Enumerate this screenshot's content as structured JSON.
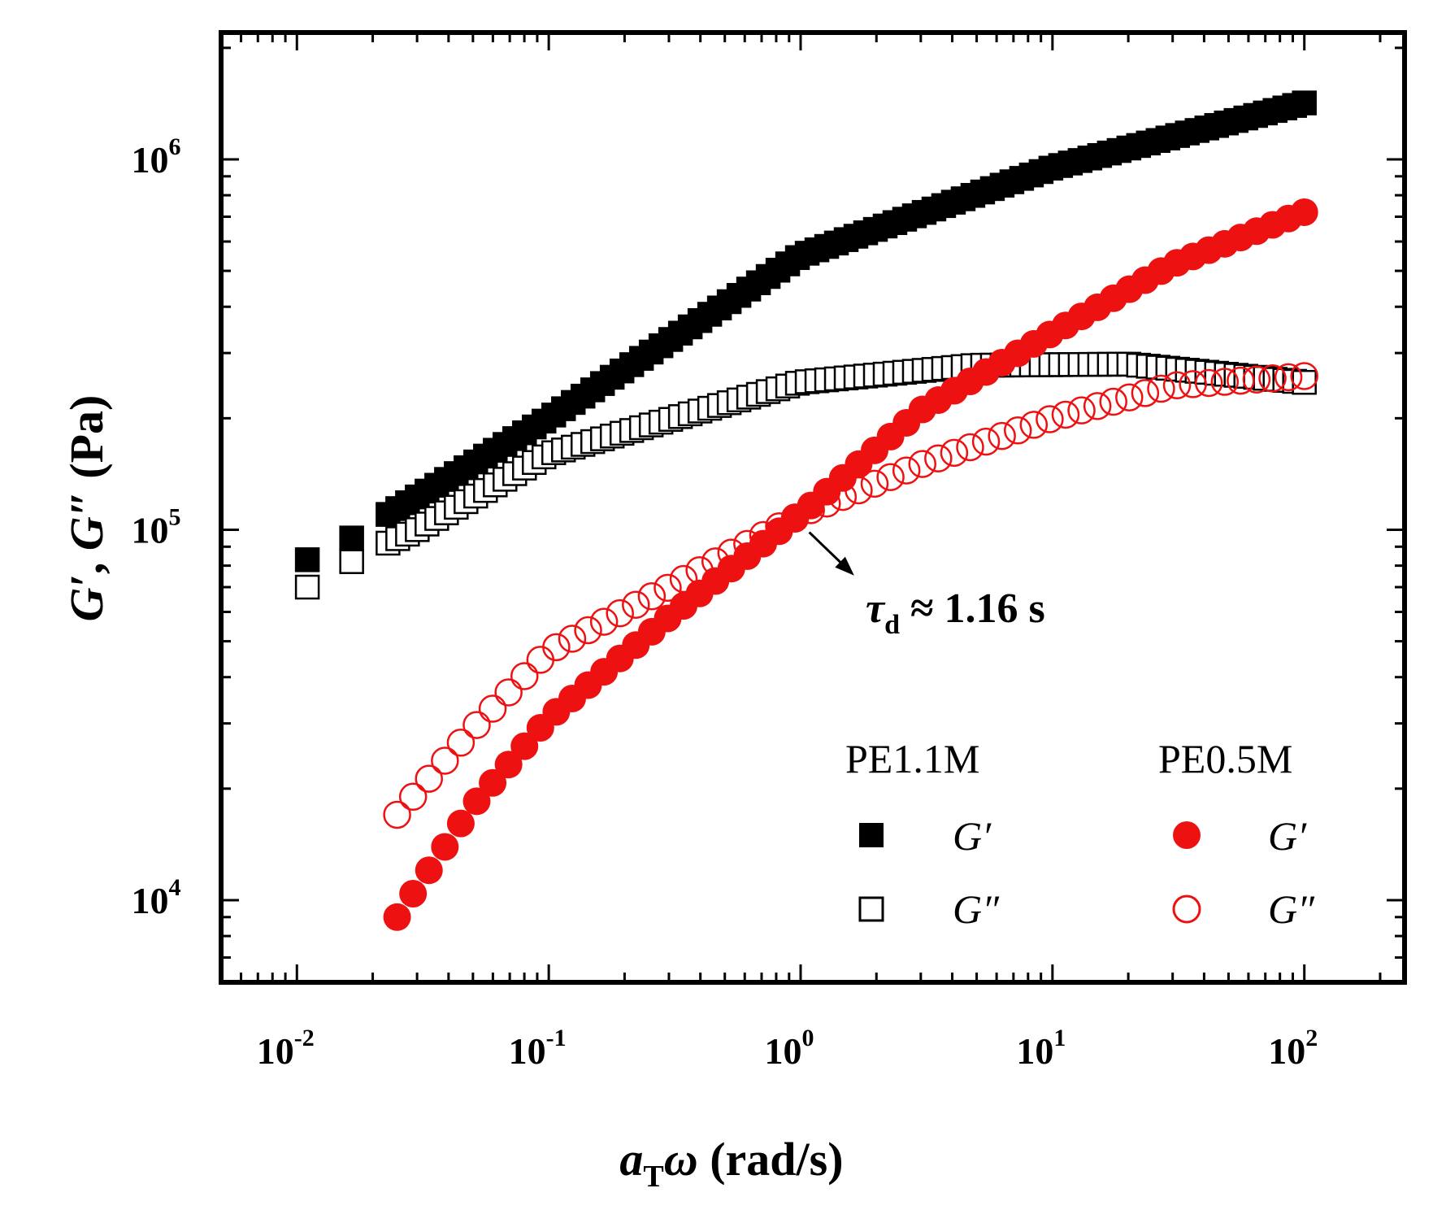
{
  "chart_data": {
    "type": "scatter",
    "xscale": "log",
    "yscale": "log",
    "xlim": [
      0.005,
      250
    ],
    "ylim": [
      6000,
      2200000
    ],
    "xlabel": "aTω (rad/s)",
    "ylabel": "G′, G″ (Pa)",
    "xticks": [
      {
        "base": "10",
        "exp": "-2"
      },
      {
        "base": "10",
        "exp": "-1"
      },
      {
        "base": "10",
        "exp": "0"
      },
      {
        "base": "10",
        "exp": "1"
      },
      {
        "base": "10",
        "exp": "2"
      }
    ],
    "yticks": [
      {
        "base": "10",
        "exp": "4"
      },
      {
        "base": "10",
        "exp": "5"
      },
      {
        "base": "10",
        "exp": "6"
      }
    ],
    "annotation": {
      "text": "τd ≈ 1.16 s",
      "tau": "τ",
      "sub": "d",
      "rest": " ≈ 1.16 s",
      "target_x": 0.99,
      "target_y": 110000
    },
    "legend": {
      "groups": [
        "PE1.1M",
        "PE0.5M"
      ],
      "rows": [
        "G′",
        "G″"
      ]
    },
    "series": [
      {
        "name": "G′",
        "group": "PE1.1M",
        "marker": "square",
        "fill": "filled",
        "color": "#000000",
        "start_points": [
          [
            0.011,
            83000
          ],
          [
            0.0165,
            95000
          ]
        ],
        "from": 0.023,
        "to": 100,
        "count": 95,
        "curve": "PE11_Gp"
      },
      {
        "name": "G″",
        "group": "PE1.1M",
        "marker": "square",
        "fill": "open",
        "color": "#000000",
        "start_points": [
          [
            0.011,
            70000
          ],
          [
            0.0165,
            82000
          ]
        ],
        "from": 0.023,
        "to": 100,
        "count": 95,
        "curve": "PE11_Gpp"
      },
      {
        "name": "G′",
        "group": "PE0.5M",
        "marker": "circle",
        "fill": "filled",
        "color": "#ee1111",
        "from": 0.025,
        "to": 100,
        "count": 58,
        "curve": "PE05_Gp"
      },
      {
        "name": "G″",
        "group": "PE0.5M",
        "marker": "circle",
        "fill": "open",
        "color": "#ee1111",
        "from": 0.025,
        "to": 100,
        "count": 58,
        "curve": "PE05_Gpp"
      }
    ],
    "curves": {
      "PE11_Gp": [
        [
          0.023,
          110000
        ],
        [
          0.1,
          200000
        ],
        [
          1,
          550000
        ],
        [
          10,
          950000
        ],
        [
          100,
          1420000
        ]
      ],
      "PE11_Gpp": [
        [
          0.023,
          92000
        ],
        [
          0.03,
          100000
        ],
        [
          0.1,
          160000
        ],
        [
          1,
          250000
        ],
        [
          5,
          278000
        ],
        [
          20,
          280000
        ],
        [
          100,
          250000
        ]
      ],
      "PE05_Gp": [
        [
          0.025,
          9000
        ],
        [
          0.05,
          18000
        ],
        [
          0.1,
          31000
        ],
        [
          0.3,
          58000
        ],
        [
          1,
          110000
        ],
        [
          3,
          210000
        ],
        [
          10,
          340000
        ],
        [
          30,
          520000
        ],
        [
          100,
          720000
        ]
      ],
      "PE05_Gpp": [
        [
          0.025,
          17000
        ],
        [
          0.05,
          29000
        ],
        [
          0.1,
          47000
        ],
        [
          0.3,
          70000
        ],
        [
          1,
          110000
        ],
        [
          3,
          150000
        ],
        [
          10,
          200000
        ],
        [
          30,
          245000
        ],
        [
          100,
          260000
        ]
      ]
    }
  }
}
